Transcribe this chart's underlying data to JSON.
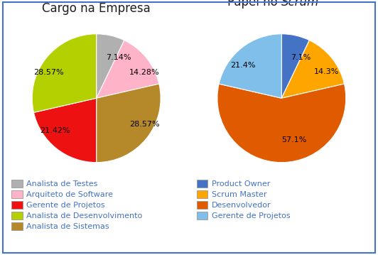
{
  "chart1": {
    "title": "Cargo na Empresa",
    "slices": [
      7.14,
      14.28,
      28.57,
      21.42,
      28.57
    ],
    "labels": [
      "7.14%",
      "14.28%",
      "28.57%",
      "21.42%",
      "28.57%"
    ],
    "colors": [
      "#b0b0b0",
      "#ffb3c8",
      "#b5882a",
      "#ee1111",
      "#b5d000"
    ],
    "startangle": 90,
    "legend_labels": [
      "Analista de Testes",
      "Arquiteto de Software",
      "Gerente de Projetos",
      "Analista de Desenvolvimento",
      "Analista de Sistemas"
    ],
    "legend_colors": [
      "#b0b0b0",
      "#ffb3c8",
      "#ee1111",
      "#b5d000",
      "#b5882a"
    ]
  },
  "chart2": {
    "title_normal": "Papel no ",
    "title_italic": "Scrum",
    "slices": [
      7.1,
      14.3,
      57.1,
      21.4
    ],
    "labels": [
      "7.1%",
      "14.3%",
      "57.1%",
      "21.4%"
    ],
    "colors": [
      "#4472c4",
      "#ffa500",
      "#e05a00",
      "#7fbfea"
    ],
    "startangle": 90,
    "legend_labels": [
      "Product Owner",
      "Scrum Master",
      "Desenvolvedor",
      "Gerente de Projetos"
    ],
    "legend_colors": [
      "#4472c4",
      "#ffa500",
      "#e05a00",
      "#7fbfea"
    ]
  },
  "background_color": "#ffffff",
  "border_color": "#4472c4",
  "title_color": "#1f1f1f",
  "legend_text_color": "#4472c4",
  "label_fontsize": 8.0,
  "legend_fontsize": 8.0,
  "title_fontsize": 12
}
